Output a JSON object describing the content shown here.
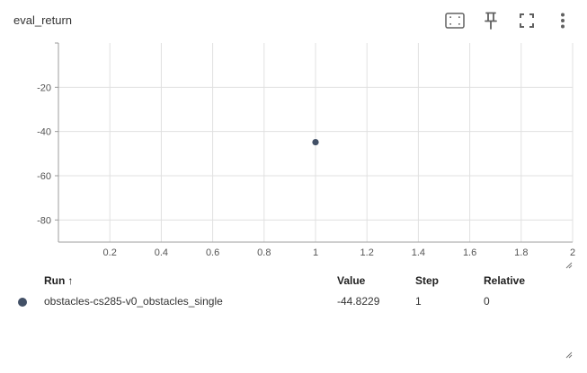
{
  "card": {
    "title": "eval_return"
  },
  "toolbar": {
    "buttons": [
      {
        "icon": "fit-domain-icon",
        "tooltip": "Fit domain to data"
      },
      {
        "icon": "pin-icon",
        "tooltip": "Pin card"
      },
      {
        "icon": "fullscreen-icon",
        "tooltip": "Toggle fullscreen"
      },
      {
        "icon": "more-vert-icon",
        "tooltip": "More options"
      }
    ]
  },
  "chart_data": {
    "type": "scatter",
    "title": "eval_return",
    "x_ticks": [
      "0.2",
      "0.4",
      "0.6",
      "0.8",
      "1",
      "1.2",
      "1.4",
      "1.6",
      "1.8",
      "2"
    ],
    "y_ticks": [
      "-20",
      "-40",
      "-60",
      "-80"
    ],
    "xlim": [
      0,
      2
    ],
    "ylim": [
      -90,
      0
    ],
    "grid": true,
    "series": [
      {
        "name": "obstacles-cs285-v0_obstacles_single",
        "color": "#425066",
        "points": [
          {
            "x": 1,
            "y": -44.8229
          }
        ]
      }
    ]
  },
  "table": {
    "headers": {
      "run": "Run",
      "sort_arrow": "↑",
      "value": "Value",
      "step": "Step",
      "relative": "Relative"
    },
    "rows": [
      {
        "color": "#425066",
        "run": "obstacles-cs285-v0_obstacles_single",
        "value": "-44.8229",
        "step": "1",
        "relative": "0"
      }
    ]
  }
}
